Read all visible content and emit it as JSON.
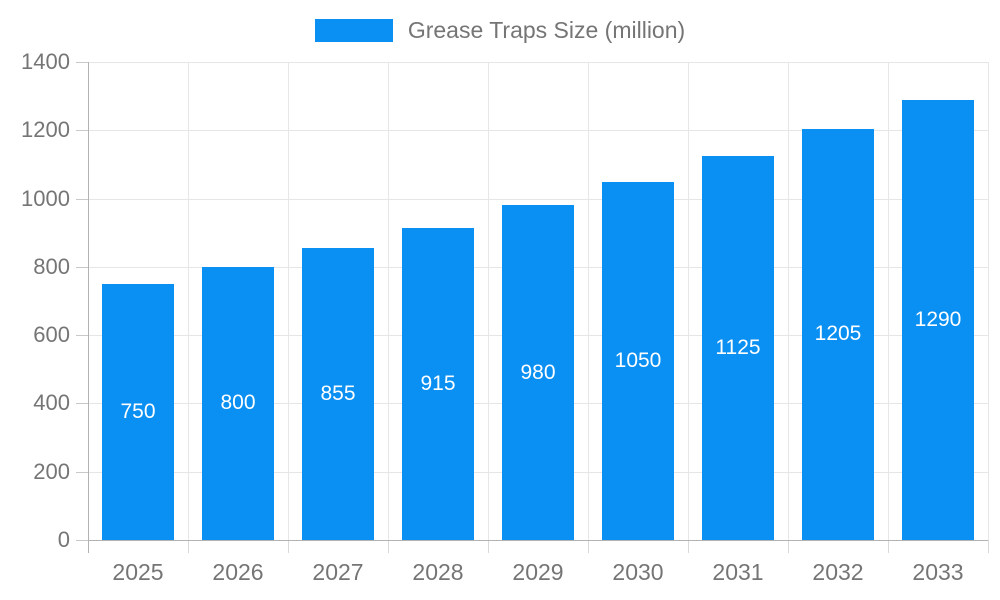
{
  "chart_data": {
    "type": "bar",
    "title": "Grease Traps Size (million)",
    "categories": [
      "2025",
      "2026",
      "2027",
      "2028",
      "2029",
      "2030",
      "2031",
      "2032",
      "2033"
    ],
    "values": [
      750,
      800,
      855,
      915,
      980,
      1050,
      1125,
      1205,
      1290
    ],
    "xlabel": "",
    "ylabel": "",
    "ylim": [
      0,
      1400
    ],
    "yticks": [
      0,
      200,
      400,
      600,
      800,
      1000,
      1200,
      1400
    ],
    "grid": true,
    "legend_position": "top-center",
    "legend": {
      "label": "Grease Traps Size (million)"
    },
    "colors": {
      "bar": "#0a8ff2",
      "value_label": "#ffffff",
      "axis_text": "#757575",
      "axis_line": "#b2b2b2",
      "gridline": "#e6e6e6",
      "tick": "#d0d0d0",
      "background": "#ffffff"
    }
  }
}
